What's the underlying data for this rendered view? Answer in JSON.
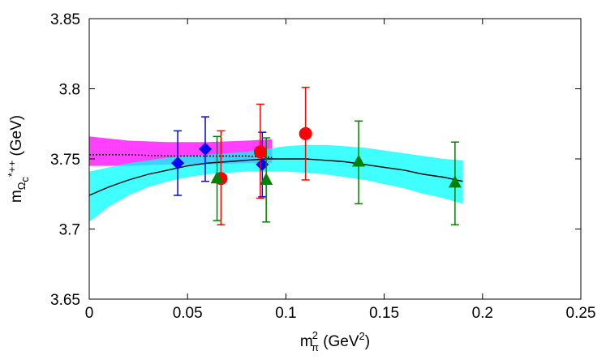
{
  "chart_data": {
    "type": "scatter",
    "xlabel": {
      "base": "m",
      "sub": "π",
      "sup": "2",
      "unit_open": " (GeV",
      "unit_sup": "2",
      "unit_close": ")"
    },
    "ylabel": {
      "base": "m",
      "sub": "Ω",
      "subsub": "c",
      "sup": "*++",
      "unit": " (GeV)"
    },
    "xlim": [
      0,
      0.25
    ],
    "ylim": [
      3.65,
      3.85
    ],
    "xticks": [
      0,
      0.05,
      0.1,
      0.15,
      0.2,
      0.25
    ],
    "xtick_labels": [
      "0",
      "0.05",
      "0.1",
      "0.15",
      "0.2",
      "0.25"
    ],
    "yticks": [
      3.65,
      3.7,
      3.75,
      3.8,
      3.85
    ],
    "ytick_labels": [
      "3.65",
      "3.7",
      "3.75",
      "3.8",
      "3.85"
    ],
    "grid": false,
    "series": [
      {
        "marker": "diamond",
        "color": "#0000ff",
        "points": [
          {
            "x": 0.045,
            "y": 3.747,
            "lo": 3.724,
            "hi": 3.77
          },
          {
            "x": 0.059,
            "y": 3.757,
            "lo": 3.734,
            "hi": 3.78
          },
          {
            "x": 0.088,
            "y": 3.746,
            "lo": 3.723,
            "hi": 3.769
          }
        ]
      },
      {
        "marker": "circle",
        "color": "#ff0000",
        "points": [
          {
            "x": 0.067,
            "y": 3.736,
            "lo": 3.703,
            "hi": 3.77
          },
          {
            "x": 0.087,
            "y": 3.755,
            "lo": 3.722,
            "hi": 3.789
          },
          {
            "x": 0.11,
            "y": 3.768,
            "lo": 3.735,
            "hi": 3.801
          }
        ]
      },
      {
        "marker": "triangle",
        "color": "#008000",
        "points": [
          {
            "x": 0.065,
            "y": 3.736,
            "lo": 3.706,
            "hi": 3.766
          },
          {
            "x": 0.09,
            "y": 3.735,
            "lo": 3.705,
            "hi": 3.765
          },
          {
            "x": 0.137,
            "y": 3.748,
            "lo": 3.718,
            "hi": 3.777
          },
          {
            "x": 0.186,
            "y": 3.733,
            "lo": 3.703,
            "hi": 3.762
          }
        ]
      }
    ],
    "bands": [
      {
        "name_key": "magenta-band",
        "color": "#ff00ff",
        "x": [
          0,
          0.02,
          0.04,
          0.06,
          0.08,
          0.093
        ],
        "lo": [
          3.745,
          3.745,
          3.746,
          3.746,
          3.747,
          3.747
        ],
        "hi": [
          3.766,
          3.763,
          3.762,
          3.762,
          3.763,
          3.764
        ]
      },
      {
        "name_key": "cyan-band",
        "color": "#00ffff",
        "x": [
          0,
          0.01,
          0.02,
          0.03,
          0.04,
          0.05,
          0.06,
          0.07,
          0.08,
          0.09,
          0.1,
          0.11,
          0.12,
          0.13,
          0.14,
          0.15,
          0.16,
          0.17,
          0.18,
          0.19
        ],
        "lo": [
          3.705,
          3.716,
          3.724,
          3.73,
          3.734,
          3.737,
          3.739,
          3.74,
          3.741,
          3.741,
          3.741,
          3.74,
          3.739,
          3.737,
          3.735,
          3.732,
          3.729,
          3.725,
          3.722,
          3.718
        ],
        "hi": [
          3.741,
          3.744,
          3.747,
          3.749,
          3.751,
          3.752,
          3.753,
          3.754,
          3.755,
          3.757,
          3.759,
          3.76,
          3.76,
          3.759,
          3.758,
          3.756,
          3.754,
          3.752,
          3.75,
          3.749
        ]
      }
    ],
    "fit_lines": [
      {
        "style": "solid",
        "color": "#000000",
        "x": [
          0,
          0.01,
          0.02,
          0.03,
          0.04,
          0.05,
          0.06,
          0.07,
          0.08,
          0.09,
          0.1,
          0.11,
          0.12,
          0.13,
          0.14,
          0.15,
          0.16,
          0.17,
          0.18,
          0.19
        ],
        "y": [
          3.724,
          3.73,
          3.735,
          3.739,
          3.742,
          3.745,
          3.747,
          3.748,
          3.749,
          3.75,
          3.75,
          3.75,
          3.749,
          3.748,
          3.746,
          3.744,
          3.742,
          3.739,
          3.737,
          3.734
        ]
      },
      {
        "style": "dotted",
        "color": "#000000",
        "x": [
          0,
          0.02,
          0.04,
          0.06,
          0.08,
          0.093
        ],
        "y": [
          3.753,
          3.753,
          3.752,
          3.752,
          3.752,
          3.751
        ]
      }
    ]
  }
}
